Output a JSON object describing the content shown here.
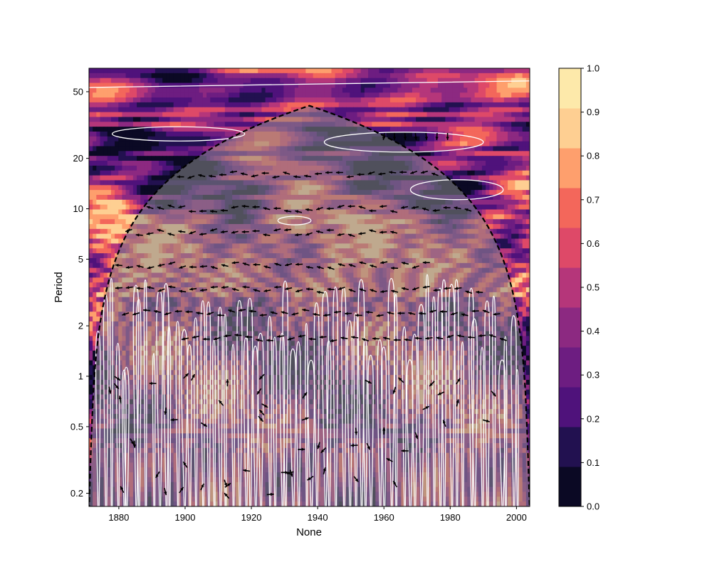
{
  "chart_data": {
    "type": "heatmap",
    "subtype": "wavelet-coherence",
    "xlabel": "None",
    "ylabel": "Period",
    "xlim": [
      1871,
      2004
    ],
    "ylim": [
      0.167,
      69
    ],
    "y_scale": "log",
    "x_ticks": [
      1880,
      1900,
      1920,
      1940,
      1960,
      1980,
      2000
    ],
    "x_tick_labels": [
      "1880",
      "1900",
      "1920",
      "1940",
      "1960",
      "1980",
      "2000"
    ],
    "y_ticks": [
      0.2,
      0.5,
      1,
      2,
      5,
      10,
      20,
      50
    ],
    "y_tick_labels": [
      "0.2",
      "0.5",
      "1",
      "2",
      "5",
      "10",
      "20",
      "50"
    ],
    "colorbar": {
      "colormap": "magma",
      "levels": [
        0.0,
        0.1,
        0.2,
        0.3,
        0.4,
        0.5,
        0.6,
        0.7,
        0.8,
        0.9,
        1.0
      ],
      "tick_labels": [
        "0.0",
        "0.1",
        "0.2",
        "0.3",
        "0.4",
        "0.5",
        "0.6",
        "0.7",
        "0.8",
        "0.9",
        "1.0"
      ],
      "colors": [
        "#0b0924",
        "#221150",
        "#4f127b",
        "#6d1d81",
        "#8c2981",
        "#b5367a",
        "#de4968",
        "#f3675b",
        "#fe9f6d",
        "#fecf92",
        "#fde9aa"
      ]
    },
    "cone_of_influence": {
      "style": "dashed",
      "color": "#000000",
      "shaded_color": "#808080",
      "shaded_alpha": 0.5
    },
    "significance_contours": {
      "color": "#ffffff"
    },
    "phase_arrows": {
      "color": "#000000",
      "dominant_direction": "left"
    },
    "grid": false,
    "legend": "none"
  }
}
